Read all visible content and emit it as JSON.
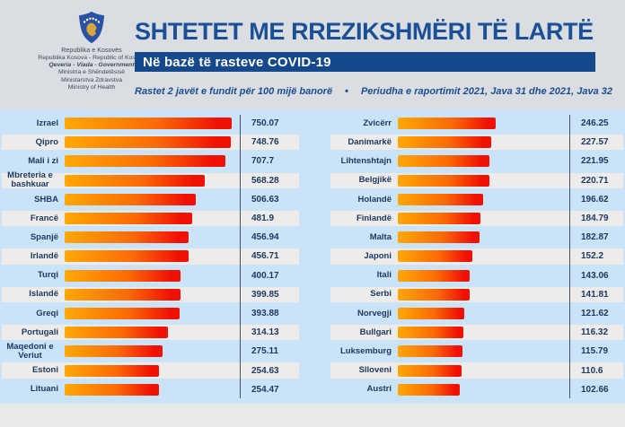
{
  "header": {
    "logo": {
      "lines": [
        "Republika e Kosovës",
        "Republika Kosova - Republic of Kosovo",
        "Qeveria - Vlada - Government",
        "Ministria e Shëndetësisë",
        "Ministarstva Zdravstva",
        "Ministry of Health"
      ]
    }
  },
  "colors": {
    "title_blue": "#1a5096",
    "banner_blue": "#15498c",
    "chart_background_blue": "#cbe3f8",
    "row_stripe_white": "#edecea",
    "text_navy": "#1d3a63",
    "bar_gradient_start": "#ffa806",
    "bar_gradient_end": "#f01004"
  },
  "chart_data": {
    "type": "bar",
    "orientation": "horizontal",
    "title": "SHTETET ME RREZIKSHMËRI TË LARTË",
    "subtitle": "Në bazë të rasteve COVID-19",
    "caption_left": "Rastet 2 javët e fundit për 100 mijë banorë",
    "caption_bullet": "•",
    "caption_right": "Periudha e raportimit 2021, Java 31 dhe 2021, Java 32",
    "value_axis_hint": "rastet e 2 javëve të fundit për 100 mijë banorë",
    "legend": "none",
    "grid": "off",
    "columns": [
      {
        "rows": [
          {
            "label": "Izrael",
            "value": 750.07
          },
          {
            "label": "Qipro",
            "value": 748.76
          },
          {
            "label": "Mali i zi",
            "value": 707.7
          },
          {
            "label": "Mbreteria e bashkuar",
            "value": 568.28
          },
          {
            "label": "SHBA",
            "value": 506.63
          },
          {
            "label": "Francë",
            "value": 481.9
          },
          {
            "label": "Spanjë",
            "value": 456.94
          },
          {
            "label": "Irlandë",
            "value": 456.71
          },
          {
            "label": "Turqi",
            "value": 400.17
          },
          {
            "label": "Islandë",
            "value": 399.85
          },
          {
            "label": "Greqi",
            "value": 393.88
          },
          {
            "label": "Portugali",
            "value": 314.13
          },
          {
            "label": "Maqedoni e Veriut",
            "value": 275.11
          },
          {
            "label": "Estoni",
            "value": 254.63
          },
          {
            "label": "Lituani",
            "value": 254.47
          }
        ]
      },
      {
        "rows": [
          {
            "label": "Zvicërr",
            "value": 246.25
          },
          {
            "label": "Danimarkë",
            "value": 227.57
          },
          {
            "label": "Lihtenshtajn",
            "value": 221.95
          },
          {
            "label": "Belgjikë",
            "value": 220.71
          },
          {
            "label": "Holandë",
            "value": 196.62
          },
          {
            "label": "Finlandë",
            "value": 184.79
          },
          {
            "label": "Malta",
            "value": 182.87
          },
          {
            "label": "Japoni",
            "value": 152.2
          },
          {
            "label": "Itali",
            "value": 143.06
          },
          {
            "label": "Serbi",
            "value": 141.81
          },
          {
            "label": "Norvegji",
            "value": 121.62
          },
          {
            "label": "Bullgari",
            "value": 116.32
          },
          {
            "label": "Luksemburg",
            "value": 115.79
          },
          {
            "label": "Slloveni",
            "value": 110.6
          },
          {
            "label": "Austri",
            "value": 102.66
          }
        ]
      }
    ]
  }
}
